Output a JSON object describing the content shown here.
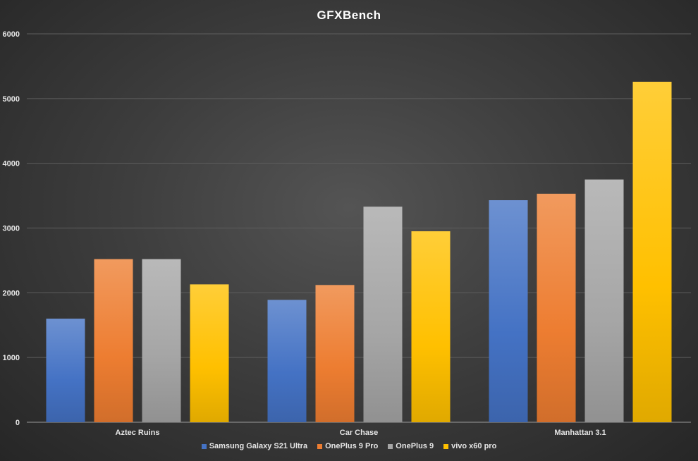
{
  "chart_data": {
    "type": "bar",
    "title": "GFXBench",
    "categories": [
      "Aztec Ruins",
      "Car Chase",
      "Manhattan 3.1"
    ],
    "series": [
      {
        "name": "Samsung Galaxy S21 Ultra",
        "values": [
          1600,
          1890,
          3430
        ],
        "color": "#4472c4"
      },
      {
        "name": "OnePlus 9 Pro",
        "values": [
          2520,
          2120,
          3530
        ],
        "color": "#ed7d31"
      },
      {
        "name": "OnePlus 9",
        "values": [
          2520,
          3330,
          3750
        ],
        "color": "#a5a5a5"
      },
      {
        "name": "vivo x60 pro",
        "values": [
          2130,
          2950,
          5260
        ],
        "color": "#ffc000"
      }
    ],
    "ylim": [
      0,
      6000
    ],
    "yticks": [
      "0",
      "1000",
      "2000",
      "3000",
      "4000",
      "5000",
      "6000"
    ],
    "grid": true,
    "legend_position": "bottom"
  }
}
